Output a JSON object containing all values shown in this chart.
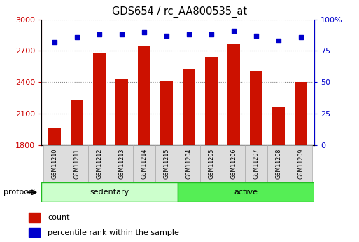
{
  "title": "GDS654 / rc_AA800535_at",
  "samples": [
    "GSM11210",
    "GSM11211",
    "GSM11212",
    "GSM11213",
    "GSM11214",
    "GSM11215",
    "GSM11204",
    "GSM11205",
    "GSM11206",
    "GSM11207",
    "GSM11208",
    "GSM11209"
  ],
  "counts": [
    1960,
    2230,
    2680,
    2430,
    2750,
    2410,
    2520,
    2640,
    2760,
    2510,
    2170,
    2400
  ],
  "percentile_ranks": [
    82,
    86,
    88,
    88,
    90,
    87,
    88,
    88,
    91,
    87,
    83,
    86
  ],
  "ylim_left": [
    1800,
    3000
  ],
  "ylim_right": [
    0,
    100
  ],
  "yticks_left": [
    1800,
    2100,
    2400,
    2700,
    3000
  ],
  "yticks_right": [
    0,
    25,
    50,
    75,
    100
  ],
  "groups": [
    {
      "label": "sedentary",
      "start": 0,
      "end": 6,
      "color": "#ccffcc"
    },
    {
      "label": "active",
      "start": 6,
      "end": 12,
      "color": "#55ee55"
    }
  ],
  "bar_color": "#cc1100",
  "dot_color": "#0000cc",
  "bar_width": 0.55,
  "protocol_label": "protocol",
  "legend_count_label": "count",
  "legend_pct_label": "percentile rank within the sample",
  "grid_color": "#888888",
  "bg_color": "#ffffff",
  "tick_color_left": "#cc0000",
  "tick_color_right": "#0000cc",
  "label_bg": "#dddddd",
  "label_edge": "#aaaaaa"
}
